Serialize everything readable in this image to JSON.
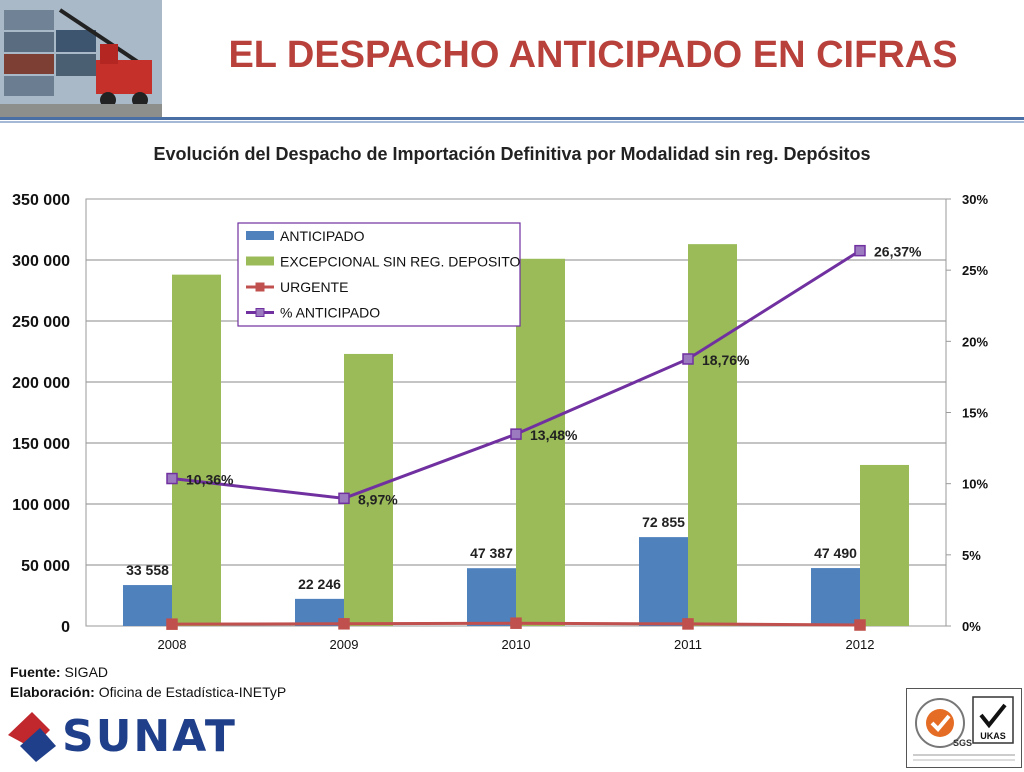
{
  "header": {
    "title": "EL DESPACHO ANTICIPADO EN CIFRAS"
  },
  "chart_data": {
    "type": "bar",
    "title": "Evolución del Despacho de Importación Definitiva por Modalidad sin reg. Depósitos",
    "categories": [
      "2008",
      "2009",
      "2010",
      "2011",
      "2012"
    ],
    "y_left": {
      "ylim": [
        0,
        350000
      ],
      "ticks": [
        "0",
        "50 000",
        "100 000",
        "150 000",
        "200 000",
        "250 000",
        "300 000",
        "350 000"
      ]
    },
    "y_right": {
      "ylim": [
        0,
        30
      ],
      "ticks": [
        "0%",
        "5%",
        "10%",
        "15%",
        "20%",
        "25%",
        "30%"
      ]
    },
    "series": [
      {
        "name": "ANTICIPADO",
        "type": "bar",
        "axis": "left",
        "color": "#4f81bd",
        "values": [
          33558,
          22246,
          47387,
          72855,
          47490
        ],
        "labels": [
          "33 558",
          "22 246",
          "47 387",
          "72 855",
          "47 490"
        ]
      },
      {
        "name": "EXCEPCIONAL SIN REG. DEPOSITO",
        "type": "bar",
        "axis": "left",
        "color": "#9bbb59",
        "values": [
          288000,
          223000,
          301000,
          313000,
          132000
        ]
      },
      {
        "name": "URGENTE",
        "type": "line",
        "axis": "left",
        "color": "#c0504d",
        "values": [
          1500,
          1800,
          2300,
          1700,
          800
        ]
      },
      {
        "name": "% ANTICIPADO",
        "type": "line",
        "axis": "right",
        "color": "#7030a0",
        "values": [
          10.36,
          8.97,
          13.48,
          18.76,
          26.37
        ],
        "labels": [
          "10,36%",
          "8,97%",
          "13,48%",
          "18,76%",
          "26,37%"
        ]
      }
    ],
    "grid": true,
    "legend_position": "top-left"
  },
  "footer": {
    "source_label": "Fuente:",
    "source_value": "SIGAD",
    "elab_label": "Elaboración:",
    "elab_value": "Oficina de Estadística-INETyP",
    "brand": "SUNAT",
    "cert_ukas": "UKAS",
    "cert_sgs": "SGS"
  }
}
